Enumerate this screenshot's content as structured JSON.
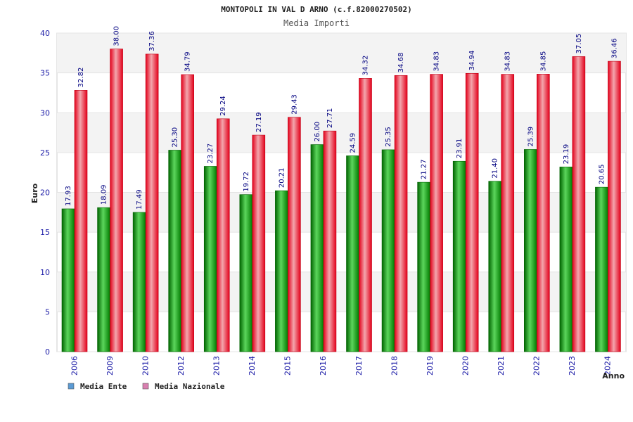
{
  "chart_data": {
    "type": "bar",
    "title": "MONTOPOLI IN VAL D ARNO (c.f.82000270502)",
    "subtitle": "Media Importi",
    "xlabel": "Anno",
    "ylabel": "Euro",
    "ylim": [
      0,
      40
    ],
    "yticks": [
      0,
      5,
      10,
      15,
      20,
      25,
      30,
      35,
      40
    ],
    "grid": true,
    "legend_position": "bottom-left",
    "categories": [
      "2006",
      "2009",
      "2010",
      "2012",
      "2013",
      "2014",
      "2015",
      "2016",
      "2017",
      "2018",
      "2019",
      "2020",
      "2021",
      "2022",
      "2023",
      "2024"
    ],
    "series": [
      {
        "name": "Media Ente",
        "color": "#00a000",
        "legend_color": "#5b9bd5",
        "values": [
          17.93,
          18.09,
          17.49,
          25.3,
          23.27,
          19.72,
          20.21,
          26.0,
          24.59,
          25.35,
          21.27,
          23.91,
          21.4,
          25.39,
          23.19,
          20.65
        ],
        "labels": [
          "17.93",
          "18.09",
          "17.49",
          "25.30",
          "23.27",
          "19.72",
          "20.21",
          "26.00",
          "24.59",
          "25.35",
          "21.27",
          "23.91",
          "21.40",
          "25.39",
          "23.19",
          "20.65"
        ]
      },
      {
        "name": "Media Nazionale",
        "color": "#e8001c",
        "legend_color": "#d97fb0",
        "values": [
          32.82,
          38.0,
          37.36,
          34.79,
          29.24,
          27.19,
          29.43,
          27.71,
          34.32,
          34.68,
          34.83,
          34.94,
          34.83,
          34.85,
          37.05,
          36.46
        ],
        "labels": [
          "32.82",
          "38.00",
          "37.36",
          "34.79",
          "29.24",
          "27.19",
          "29.43",
          "27.71",
          "34.32",
          "34.68",
          "34.83",
          "34.94",
          "34.83",
          "34.85",
          "37.05",
          "36.46"
        ]
      }
    ]
  }
}
